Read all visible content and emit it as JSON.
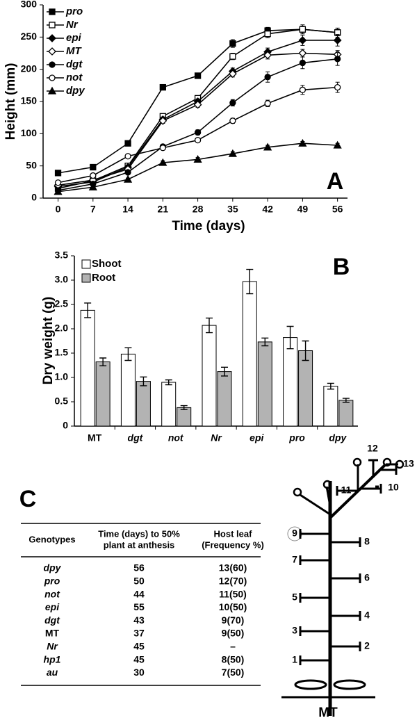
{
  "chart_data": [
    {
      "type": "line",
      "annotation": "A",
      "xlabel": "Time (days)",
      "ylabel": "Height (mm)",
      "x": [
        0,
        7,
        14,
        21,
        28,
        35,
        42,
        49,
        56
      ],
      "xlim": [
        -3,
        58
      ],
      "xticks": [
        0,
        7,
        14,
        21,
        28,
        35,
        42,
        49,
        56
      ],
      "ylim": [
        0,
        300
      ],
      "yticks": [
        0,
        50,
        100,
        150,
        200,
        250,
        300
      ],
      "legend": "upper left",
      "series": [
        {
          "name": "pro",
          "color": "#000000",
          "marker": "square",
          "values": [
            39,
            48,
            85,
            172,
            190,
            240,
            260,
            262,
            257
          ],
          "errors": [
            2,
            2,
            3,
            4,
            4,
            6,
            5,
            5,
            5
          ]
        },
        {
          "name": "Nr",
          "color": "#000000",
          "marker": "square-open",
          "values": [
            15,
            27,
            50,
            127,
            155,
            220,
            255,
            262,
            257
          ],
          "errors": [
            2,
            2,
            3,
            4,
            4,
            5,
            6,
            7,
            7
          ]
        },
        {
          "name": "epi",
          "color": "#000000",
          "marker": "diamond",
          "values": [
            18,
            25,
            48,
            122,
            150,
            197,
            227,
            245,
            245
          ],
          "errors": [
            2,
            2,
            3,
            4,
            4,
            5,
            6,
            8,
            9
          ]
        },
        {
          "name": "MT",
          "color": "#000000",
          "marker": "diamond-open",
          "values": [
            20,
            28,
            45,
            120,
            145,
            193,
            222,
            225,
            223
          ],
          "errors": [
            2,
            2,
            3,
            4,
            4,
            5,
            6,
            6,
            6
          ]
        },
        {
          "name": "dgt",
          "color": "#000000",
          "marker": "circle",
          "values": [
            12,
            22,
            40,
            80,
            102,
            148,
            188,
            210,
            216
          ],
          "errors": [
            2,
            2,
            3,
            3,
            4,
            5,
            8,
            9,
            10
          ]
        },
        {
          "name": "not",
          "color": "#000000",
          "marker": "circle-open",
          "values": [
            24,
            35,
            65,
            78,
            90,
            120,
            147,
            168,
            172
          ],
          "errors": [
            2,
            2,
            3,
            3,
            3,
            4,
            5,
            7,
            8
          ]
        },
        {
          "name": "dpy",
          "color": "#000000",
          "marker": "triangle",
          "values": [
            10,
            17,
            29,
            55,
            60,
            69,
            79,
            85,
            82
          ],
          "errors": [
            1,
            2,
            2,
            3,
            3,
            3,
            3,
            3,
            3
          ]
        }
      ]
    },
    {
      "type": "bar",
      "annotation": "B",
      "ylabel": "Dry weight (g)",
      "categories": [
        "MT",
        "dgt",
        "not",
        "Nr",
        "epi",
        "pro",
        "dpy"
      ],
      "ylim": [
        0,
        3.5
      ],
      "yticks": [
        0,
        0.5,
        {
          "value": 1,
          "label": "1.0"
        },
        1.5,
        {
          "value": 2,
          "label": "2.0"
        },
        2.5,
        {
          "value": 3,
          "label": "3.0"
        },
        3.5
      ],
      "legend": "upper left",
      "series": [
        {
          "name": "Shoot",
          "color": "#ffffff",
          "values": [
            2.38,
            1.48,
            0.9,
            2.07,
            2.97,
            1.82,
            0.82
          ],
          "errors": [
            0.15,
            0.13,
            0.05,
            0.15,
            0.25,
            0.23,
            0.06
          ]
        },
        {
          "name": "Root",
          "color": "#b3b3b3",
          "values": [
            1.32,
            0.92,
            0.38,
            1.12,
            1.73,
            1.55,
            0.53
          ],
          "errors": [
            0.08,
            0.09,
            0.04,
            0.09,
            0.08,
            0.2,
            0.04
          ]
        }
      ]
    }
  ],
  "table": {
    "label": "C",
    "columns": [
      "Genotypes",
      [
        "Time (days) to 50%",
        "plant at anthesis"
      ],
      [
        "Host leaf",
        "(Frequency %)"
      ]
    ],
    "rows": [
      [
        "dpy",
        "56",
        "13(60)"
      ],
      [
        "pro",
        "50",
        "12(70)"
      ],
      [
        "not",
        "44",
        "11(50)"
      ],
      [
        "epi",
        "55",
        "10(50)"
      ],
      [
        "dgt",
        "43",
        "9(70)"
      ],
      [
        "MT",
        "37",
        "9(50)"
      ],
      [
        "Nr",
        "45",
        "–"
      ],
      [
        "hp1",
        "45",
        "8(50)"
      ],
      [
        "au",
        "30",
        "7(50)"
      ]
    ]
  },
  "diagram": {
    "leaf_labels": [
      "1",
      "2",
      "3",
      "4",
      "5",
      "6",
      "7",
      "8",
      "9",
      "10",
      "11",
      "12",
      "13"
    ],
    "label": "MT"
  }
}
